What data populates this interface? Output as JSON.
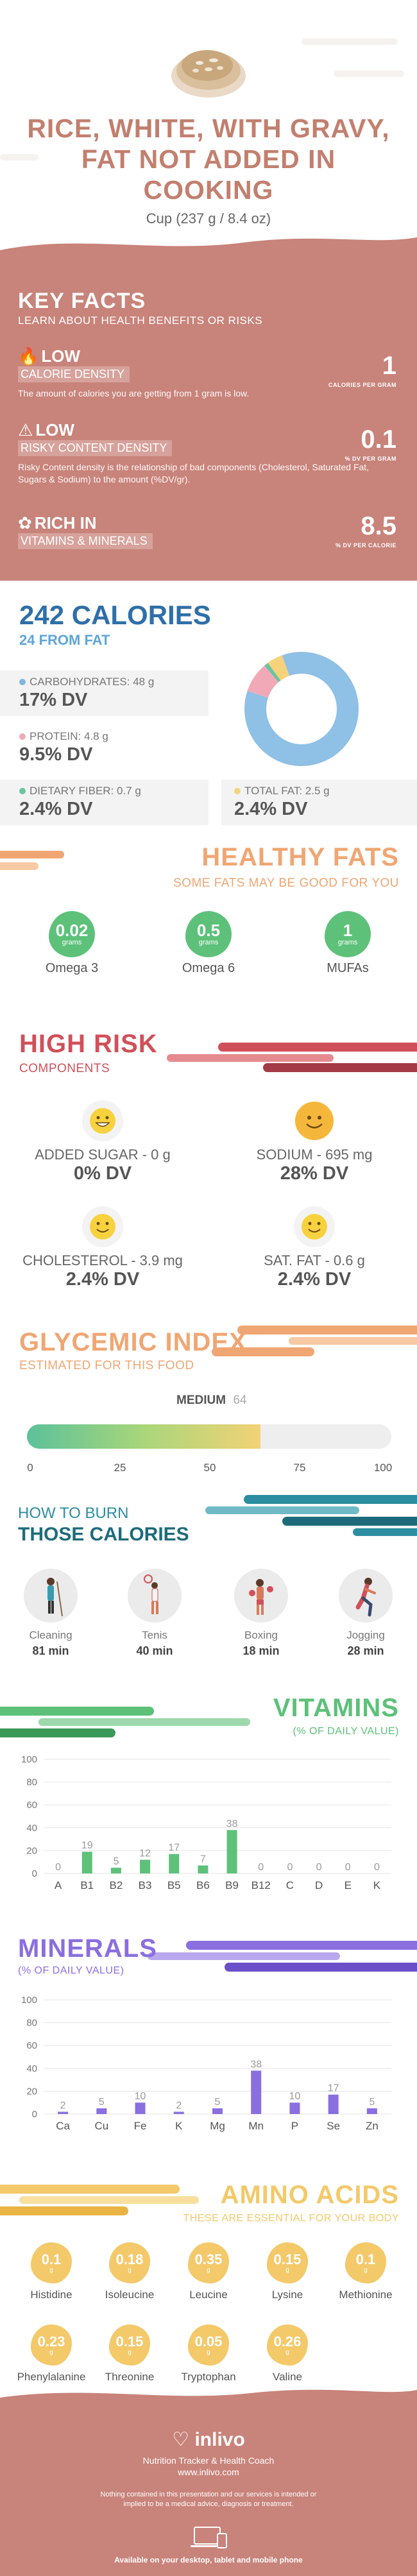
{
  "header": {
    "title": "RICE, WHITE, WITH GRAVY, FAT NOT ADDED IN COOKING",
    "serving": "Cup (237 g / 8.4 oz)"
  },
  "key_facts": {
    "title": "KEY FACTS",
    "subtitle": "LEARN ABOUT HEALTH BENEFITS OR RISKS",
    "items": [
      {
        "level": "LOW",
        "label": "CALORIE DENSITY",
        "value": "1",
        "unit": "CALORIES PER GRAM",
        "desc": "The amount of calories you are getting from 1 gram is low."
      },
      {
        "level": "LOW",
        "label": "RISKY CONTENT DENSITY",
        "value": "0.1",
        "unit": "% DV PER GRAM",
        "desc": "Risky Content density is the relationship of bad components (Cholesterol, Saturated Fat, Sugars & Sodium) to the amount (%DV/gr)."
      },
      {
        "level": "RICH IN",
        "label": "VITAMINS & MINERALS",
        "value": "8.5",
        "unit": "% DV PER CALORIE",
        "desc": ""
      }
    ]
  },
  "calories": {
    "title": "242 CALORIES",
    "from_fat": "24 FROM FAT",
    "nutrients": [
      {
        "label": "CARBOHYDRATES: 48 g",
        "dv": "17% DV",
        "color": "#7fb6e0"
      },
      {
        "label": "PROTEIN: 4.8 g",
        "dv": "9.5% DV",
        "color": "#f1a9b8"
      },
      {
        "label": "DIETARY FIBER: 0.7 g",
        "dv": "2.4% DV",
        "color": "#6cc3a0"
      },
      {
        "label": "TOTAL FAT: 2.5 g",
        "dv": "2.4% DV",
        "color": "#f6d27a"
      }
    ],
    "donut": [
      {
        "name": "carbs",
        "value": 48,
        "color": "#8fc0e6"
      },
      {
        "name": "protein",
        "value": 4.8,
        "color": "#f1a9b8"
      },
      {
        "name": "fiber",
        "value": 0.7,
        "color": "#6cc3a0"
      },
      {
        "name": "fat",
        "value": 2.5,
        "color": "#f6d27a"
      }
    ]
  },
  "healthy_fats": {
    "title": "HEALTHY FATS",
    "subtitle": "SOME FATS MAY BE GOOD FOR YOU",
    "items": [
      {
        "value": "0.02",
        "unit": "grams",
        "name": "Omega 3"
      },
      {
        "value": "0.5",
        "unit": "grams",
        "name": "Omega 6"
      },
      {
        "value": "1",
        "unit": "grams",
        "name": "MUFAs"
      }
    ]
  },
  "high_risk": {
    "title": "HIGH RISK",
    "subtitle": "COMPONENTS",
    "items": [
      {
        "label": "ADDED SUGAR - 0 g",
        "dv": "0% DV",
        "face": "grin"
      },
      {
        "label": "SODIUM - 695 mg",
        "dv": "28% DV",
        "face": "smile"
      },
      {
        "label": "CHOLESTEROL - 3.9 mg",
        "dv": "2.4% DV",
        "face": "smile"
      },
      {
        "label": "SAT. FAT - 0.6 g",
        "dv": "2.4% DV",
        "face": "smile"
      }
    ]
  },
  "glycemic": {
    "title": "GLYCEMIC INDEX",
    "subtitle": "ESTIMATED FOR THIS FOOD",
    "level": "MEDIUM",
    "value": "64",
    "value_num": 64,
    "ticks": [
      "0",
      "25",
      "50",
      "75",
      "100"
    ]
  },
  "burn": {
    "title_line1": "HOW TO BURN",
    "title_line2": "THOSE CALORIES",
    "activities": [
      {
        "name": "Cleaning",
        "minutes": "81 min",
        "icon": "cleaning-icon"
      },
      {
        "name": "Tenis",
        "minutes": "40 min",
        "icon": "tennis-icon"
      },
      {
        "name": "Boxing",
        "minutes": "18 min",
        "icon": "boxing-icon"
      },
      {
        "name": "Jogging",
        "minutes": "28 min",
        "icon": "jogging-icon"
      }
    ]
  },
  "chart_data": [
    {
      "type": "bar",
      "title": "VITAMINS",
      "subtitle": "(% OF DAILY VALUE)",
      "categories": [
        "A",
        "B1",
        "B2",
        "B3",
        "B5",
        "B6",
        "B9",
        "B12",
        "C",
        "D",
        "E",
        "K"
      ],
      "values": [
        0,
        19,
        5,
        12,
        17,
        7,
        38,
        0,
        0,
        0,
        0,
        0
      ],
      "ylim": [
        0,
        100
      ],
      "yticks": [
        "100",
        "80",
        "60",
        "40",
        "20",
        "0"
      ],
      "color": "#5dc17a"
    },
    {
      "type": "bar",
      "title": "MINERALS",
      "subtitle": "(% OF DAILY VALUE)",
      "categories": [
        "Ca",
        "Cu",
        "Fe",
        "K",
        "Mg",
        "Mn",
        "P",
        "Se",
        "Zn"
      ],
      "values": [
        2,
        5,
        10,
        2,
        5,
        38,
        10,
        17,
        5
      ],
      "ylim": [
        0,
        100
      ],
      "yticks": [
        "100",
        "80",
        "60",
        "40",
        "20",
        "0"
      ],
      "color": "#8b6ee0"
    }
  ],
  "amino": {
    "title": "AMINO ACIDS",
    "subtitle": "THESE ARE ESSENTIAL FOR YOUR BODY",
    "items": [
      {
        "value": "0.1",
        "unit": "g",
        "name": "Histidine"
      },
      {
        "value": "0.18",
        "unit": "g",
        "name": "Isoleucine"
      },
      {
        "value": "0.35",
        "unit": "g",
        "name": "Leucine"
      },
      {
        "value": "0.15",
        "unit": "g",
        "name": "Lysine"
      },
      {
        "value": "0.1",
        "unit": "g",
        "name": "Methionine"
      },
      {
        "value": "0.23",
        "unit": "g",
        "name": "Phenylalanine"
      },
      {
        "value": "0.15",
        "unit": "g",
        "name": "Threonine"
      },
      {
        "value": "0.05",
        "unit": "g",
        "name": "Tryptophan"
      },
      {
        "value": "0.26",
        "unit": "g",
        "name": "Valine"
      }
    ]
  },
  "footer": {
    "logo": "inlivo",
    "tagline": "Nutrition Tracker & Health Coach",
    "url": "www.inlivo.com",
    "disclaimer": "Nothing contained in this presentation and our services is intended or implied to be a medical advice, diagnosis or treatment.",
    "available": "Available on your desktop, tablet and mobile phone"
  },
  "colors": {
    "brand": "#c8837a",
    "blue": "#2e6fa8",
    "green": "#5dc17a",
    "orange": "#f0a673",
    "red": "#d0505a",
    "teal": "#2c8ea0",
    "purple": "#8b6ee0",
    "yellow": "#f3c96a"
  }
}
